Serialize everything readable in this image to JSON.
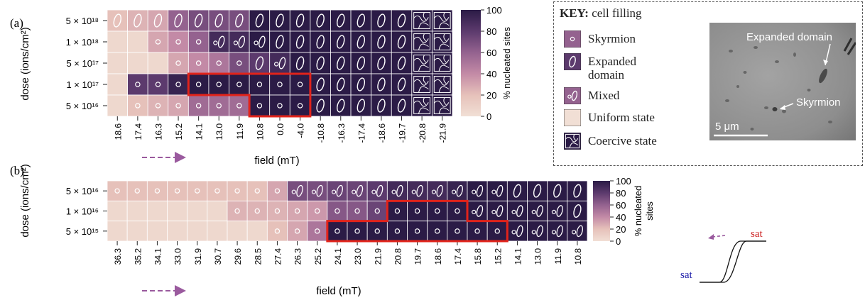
{
  "colors": {
    "scale": [
      "#f1dfd5",
      "#e6c1ba",
      "#c38aa6",
      "#94628f",
      "#5c3a6d",
      "#2b1b46"
    ],
    "highlight": "#e2231a",
    "arrow": "#9a5a9e",
    "sat_top": "#cc2222",
    "sat_bottom": "#1a1aa8"
  },
  "panel_a": {
    "label": "(a)",
    "ylabel": "dose (ions/cm²)",
    "xlabel": "field (mT)",
    "cbar_label": "% nucleated sites"
  },
  "panel_b": {
    "label": "(b)",
    "ylabel": "dose (ions/cm²)",
    "xlabel": "field (mT)",
    "cbar_label": "% nucleated\nsites"
  },
  "key": {
    "title_bold": "KEY:",
    "title_rest": " cell filling",
    "items": [
      {
        "label": "Skyrmion",
        "icon": "skyrmion"
      },
      {
        "label": "Expanded\ndomain",
        "icon": "expanded"
      },
      {
        "label": "Mixed",
        "icon": "mixed"
      },
      {
        "label": "Uniform state",
        "icon": "uniform"
      },
      {
        "label": "Coercive state",
        "icon": "coercive"
      }
    ],
    "micrograph": {
      "expanded_label": "Expanded domain",
      "skyrmion_label": "Skyrmion",
      "scale_label": "5 μm"
    }
  },
  "hysteresis": {
    "sat_top": "sat",
    "sat_bottom": "sat"
  },
  "chart_data": [
    {
      "type": "heatmap",
      "title": "",
      "xlabel": "field (mT)",
      "ylabel": "dose (ions/cm²)",
      "x": [
        "18.6",
        "17.4",
        "16.3",
        "15.2",
        "14.1",
        "13.0",
        "11.9",
        "10.8",
        "0.0",
        "-4.0",
        "-10.8",
        "-16.3",
        "-17.4",
        "-18.6",
        "-19.7",
        "-20.8",
        "-21.9"
      ],
      "y": [
        "5 × 10¹⁸",
        "1 × 10¹⁸",
        "5 × 10¹⁷",
        "1 × 10¹⁷",
        "5 × 10¹⁶"
      ],
      "colorbar": {
        "label": "% nucleated sites",
        "range": [
          0,
          100
        ],
        "ticks": [
          0,
          20,
          40,
          60,
          80,
          100
        ]
      },
      "values": [
        [
          20,
          25,
          30,
          60,
          70,
          70,
          70,
          100,
          100,
          100,
          100,
          100,
          100,
          100,
          100,
          100,
          100
        ],
        [
          5,
          5,
          30,
          40,
          60,
          90,
          90,
          100,
          100,
          100,
          100,
          100,
          100,
          100,
          100,
          100,
          100
        ],
        [
          5,
          5,
          5,
          30,
          40,
          50,
          70,
          80,
          90,
          100,
          100,
          100,
          100,
          100,
          100,
          100,
          100
        ],
        [
          5,
          80,
          80,
          95,
          100,
          100,
          100,
          100,
          100,
          100,
          100,
          100,
          100,
          100,
          100,
          100,
          100
        ],
        [
          5,
          20,
          25,
          30,
          55,
          55,
          55,
          100,
          100,
          100,
          100,
          100,
          100,
          100,
          100,
          100,
          100
        ]
      ],
      "cell_fill": [
        [
          "E",
          "E",
          "E",
          "E",
          "E",
          "E",
          "E",
          "E",
          "E",
          "E",
          "E",
          "E",
          "E",
          "E",
          "E",
          "C",
          "C"
        ],
        [
          "U",
          "U",
          "S",
          "S",
          "S",
          "M",
          "M",
          "M",
          "E",
          "E",
          "E",
          "E",
          "E",
          "E",
          "E",
          "C",
          "C"
        ],
        [
          "U",
          "U",
          "U",
          "S",
          "S",
          "S",
          "S",
          "E",
          "M",
          "E",
          "E",
          "E",
          "E",
          "E",
          "E",
          "C",
          "C"
        ],
        [
          "U",
          "S",
          "S",
          "S",
          "S",
          "S",
          "S",
          "S",
          "S",
          "S",
          "E",
          "E",
          "E",
          "E",
          "E",
          "C",
          "C"
        ],
        [
          "U",
          "S",
          "S",
          "S",
          "S",
          "S",
          "S",
          "S",
          "S",
          "S",
          "E",
          "E",
          "E",
          "E",
          "E",
          "C",
          "C"
        ]
      ]
    },
    {
      "type": "heatmap",
      "title": "",
      "xlabel": "field (mT)",
      "ylabel": "dose (ions/cm²)",
      "x": [
        "36.3",
        "35.2",
        "34.1",
        "33.0",
        "31.9",
        "30.7",
        "29.6",
        "28.5",
        "27.4",
        "26.3",
        "25.2",
        "24.1",
        "23.0",
        "21.9",
        "20.8",
        "19.7",
        "18.6",
        "17.4",
        "15.8",
        "15.2",
        "14.1",
        "13.0",
        "11.9",
        "10.8"
      ],
      "y": [
        "5 × 10¹⁶",
        "1 × 10¹⁶",
        "5 × 10¹⁵"
      ],
      "colorbar": {
        "label": "% nucleated sites",
        "range": [
          0,
          100
        ],
        "ticks": [
          0,
          20,
          40,
          60,
          80,
          100
        ]
      },
      "values": [
        [
          20,
          20,
          20,
          20,
          20,
          20,
          20,
          20,
          30,
          70,
          70,
          75,
          75,
          80,
          90,
          90,
          90,
          95,
          100,
          100,
          100,
          100,
          100,
          100
        ],
        [
          5,
          5,
          5,
          5,
          5,
          5,
          25,
          25,
          25,
          30,
          35,
          65,
          65,
          75,
          100,
          100,
          100,
          100,
          100,
          100,
          100,
          100,
          100,
          100
        ],
        [
          5,
          5,
          5,
          5,
          5,
          5,
          5,
          5,
          20,
          30,
          50,
          100,
          100,
          100,
          100,
          100,
          100,
          100,
          100,
          100,
          100,
          100,
          100,
          100
        ]
      ],
      "cell_fill": [
        [
          "S",
          "S",
          "S",
          "S",
          "S",
          "S",
          "S",
          "S",
          "S",
          "M",
          "M",
          "M",
          "M",
          "M",
          "M",
          "M",
          "M",
          "M",
          "M",
          "M",
          "E",
          "E",
          "E",
          "E"
        ],
        [
          "U",
          "U",
          "U",
          "U",
          "U",
          "U",
          "S",
          "S",
          "S",
          "S",
          "S",
          "S",
          "S",
          "S",
          "S",
          "S",
          "S",
          "S",
          "M",
          "M",
          "M",
          "M",
          "M",
          "E"
        ],
        [
          "U",
          "U",
          "U",
          "U",
          "U",
          "U",
          "U",
          "U",
          "S",
          "S",
          "S",
          "S",
          "S",
          "S",
          "S",
          "S",
          "S",
          "S",
          "S",
          "S",
          "M",
          "M",
          "M",
          "M"
        ]
      ]
    }
  ]
}
